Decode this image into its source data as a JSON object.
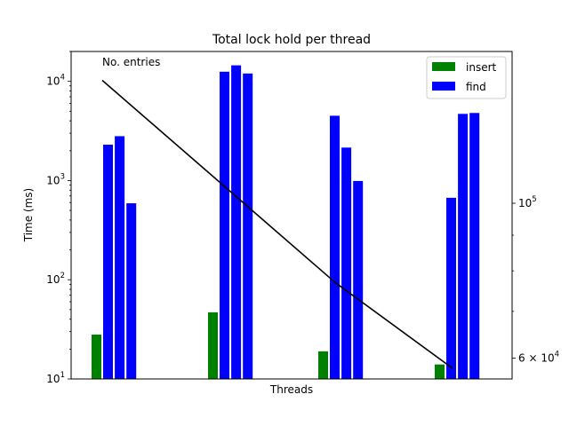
{
  "chart_data": {
    "type": "bar",
    "title": "Total lock hold per thread",
    "xlabel": "Threads",
    "ylabel": "Time (ms)",
    "yscale": "log",
    "ylim": [
      10,
      20000
    ],
    "y_ticks": [
      {
        "value": 10,
        "base": "10",
        "exp": "1"
      },
      {
        "value": 100,
        "base": "10",
        "exp": "2"
      },
      {
        "value": 1000,
        "base": "10",
        "exp": "3"
      },
      {
        "value": 10000,
        "base": "10",
        "exp": "4"
      }
    ],
    "groups": [
      {
        "insert": 28,
        "find": [
          2300,
          2800,
          590
        ]
      },
      {
        "insert": 47,
        "find": [
          12500,
          14500,
          12000
        ]
      },
      {
        "insert": 19,
        "find": [
          4500,
          2150,
          990
        ]
      },
      {
        "insert": 14,
        "find": [
          670,
          4700,
          4800
        ]
      }
    ],
    "legend": {
      "position": "upper right",
      "entries": [
        {
          "label": "insert",
          "color": "#008000"
        },
        {
          "label": "find",
          "color": "#0000ff"
        }
      ]
    },
    "secondary_axis": {
      "scale": "log",
      "ylim": [
        56000,
        165000
      ],
      "ticks": [
        {
          "value": 60000,
          "mantissa": "6",
          "base": "10",
          "exp": "4"
        },
        {
          "value": 100000,
          "mantissa": "",
          "base": "10",
          "exp": "5"
        }
      ],
      "line": {
        "annotation": "No. entries",
        "color": "#000000",
        "values": [
          150000,
          77000,
          58000
        ]
      }
    }
  }
}
